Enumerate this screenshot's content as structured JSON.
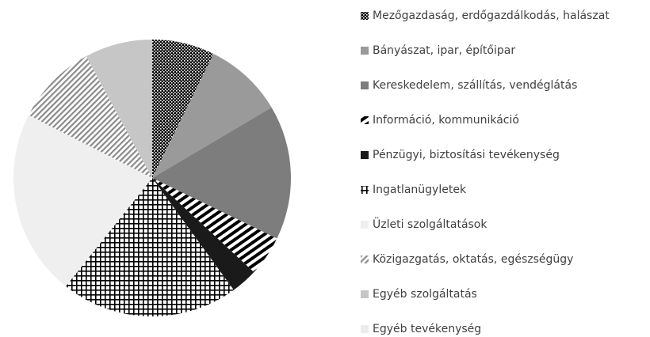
{
  "chart_data": {
    "type": "pie",
    "categories": [
      "Mezőgazdaság, erdőgazdálkodás, halászat",
      "Bányászat, ipar, építőipar",
      "Kereskedelem, szállítás, vendéglátás",
      "Információ, kommunikáció",
      "Pénzügyi, biztosítási tevékenység",
      "Ingatlanügyletek",
      "Üzleti szolgáltatások",
      "Közigazgatás, oktatás, egészségügy",
      "Egyéb szolgáltatás",
      "Egyéb tevékenység"
    ],
    "values": [
      7.3,
      9.2,
      15.7,
      4.7,
      3.1,
      20.7,
      21.8,
      9.6,
      7.9,
      0
    ],
    "colors": [
      "#000000",
      "#9a9a9a",
      "#7d7d7d",
      "#000000",
      "#1a1a1a",
      "#000000",
      "#efefef",
      "#8a8a8a",
      "#c6c6c6",
      "#ececec"
    ],
    "patterns": [
      "dots",
      null,
      null,
      "stripes",
      null,
      "grid",
      null,
      "hatch",
      null,
      null
    ],
    "legend": "right"
  }
}
